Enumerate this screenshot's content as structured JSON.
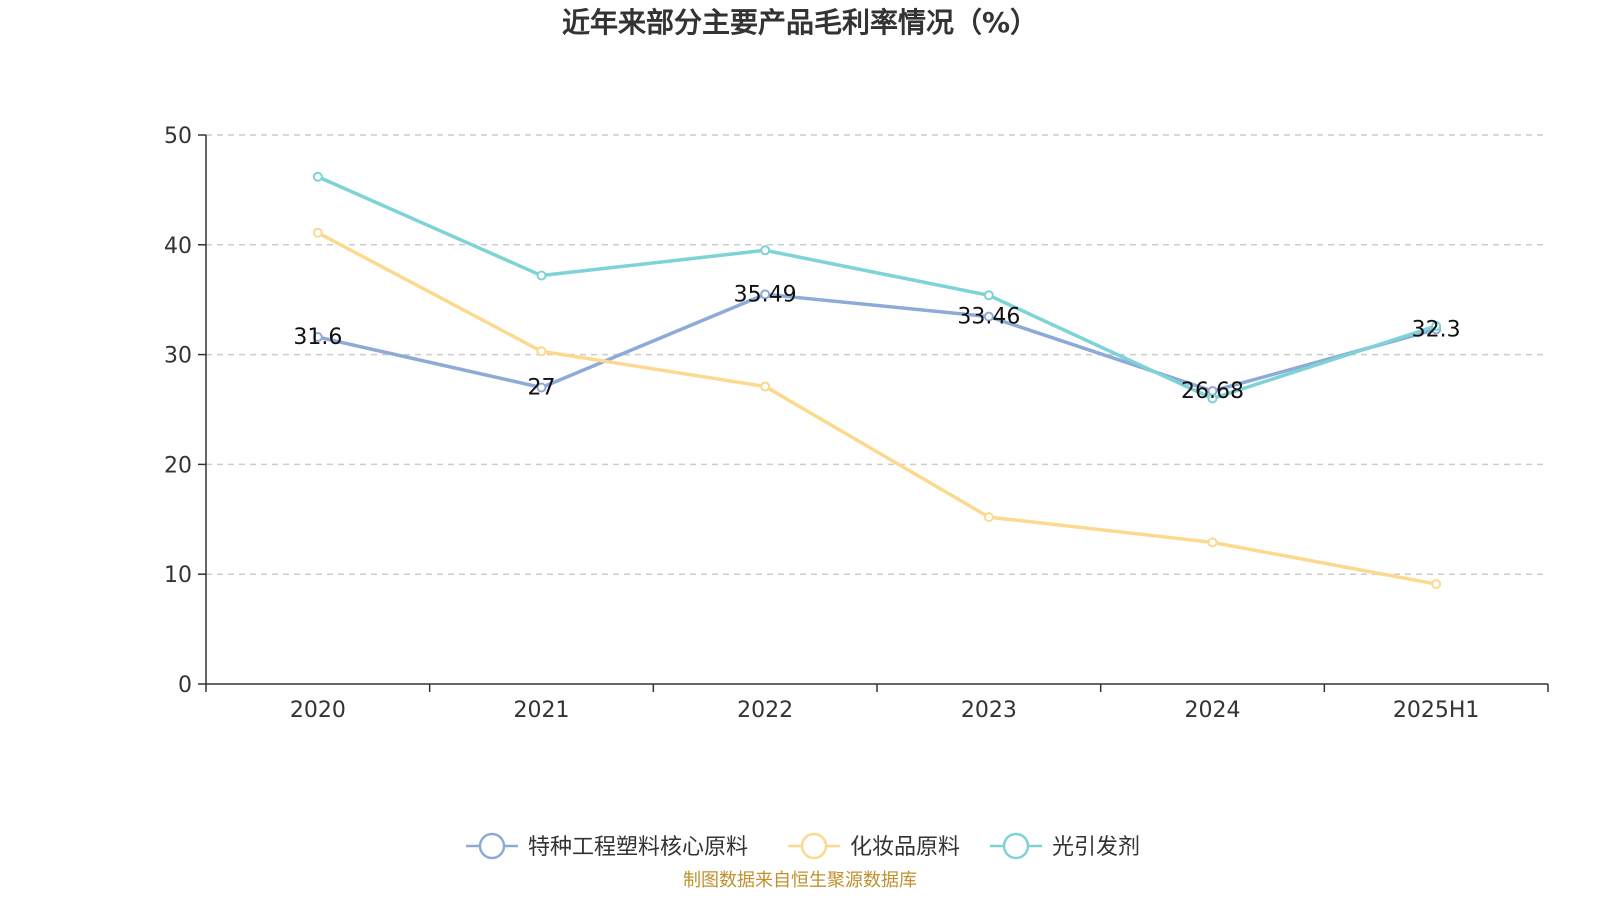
{
  "chart_data": {
    "type": "line",
    "title": "近年来部分主要产品毛利率情况（%）",
    "categories": [
      "2020",
      "2021",
      "2022",
      "2023",
      "2024",
      "2025H1"
    ],
    "ylim": [
      0,
      50
    ],
    "yticks": [
      0,
      10,
      20,
      30,
      40,
      50
    ],
    "grid": true,
    "legend_position": "bottom",
    "series": [
      {
        "name": "特种工程塑料核心原料",
        "color": "#8eaad6",
        "values": [
          31.6,
          27,
          35.49,
          33.46,
          26.68,
          32.3
        ],
        "labels": [
          "31.6",
          "27",
          "35.49",
          "33.46",
          "26.68",
          "32.3"
        ]
      },
      {
        "name": "化妆品原料",
        "color": "#fbd98f",
        "values": [
          41.1,
          30.3,
          27.1,
          15.2,
          12.9,
          9.1
        ]
      },
      {
        "name": "光引发剂",
        "color": "#7dd3d5",
        "values": [
          46.2,
          37.2,
          39.5,
          35.4,
          26.0,
          32.6
        ]
      }
    ]
  },
  "footer": {
    "source": "制图数据来自恒生聚源数据库",
    "source_color": "#c0912e"
  }
}
